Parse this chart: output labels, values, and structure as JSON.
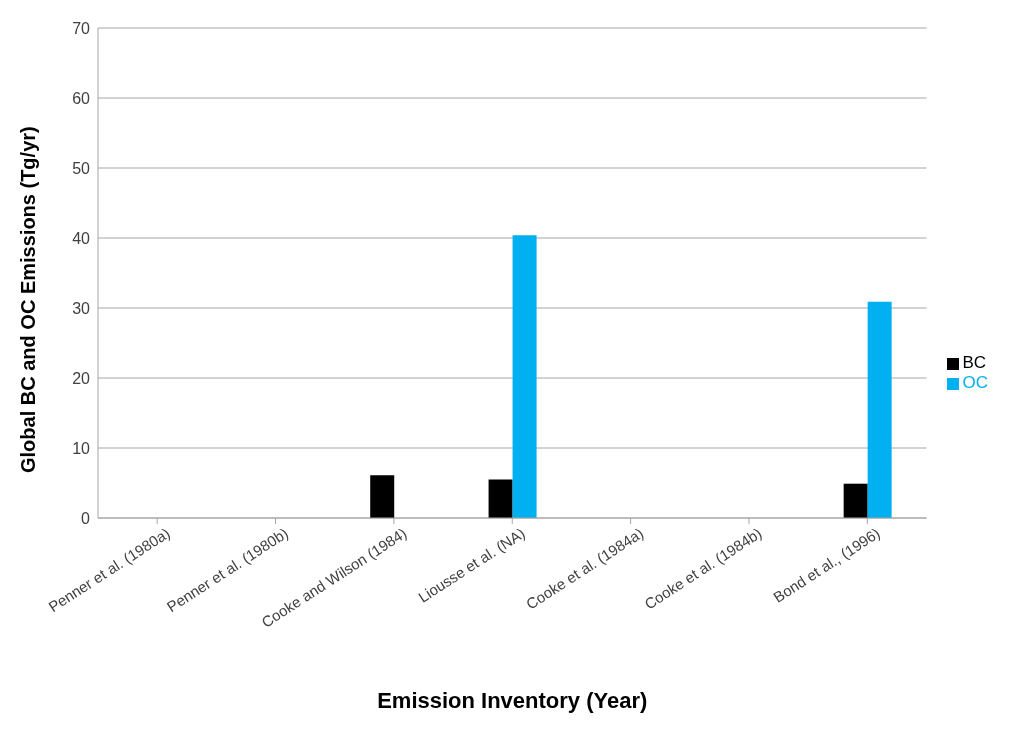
{
  "chart_data": {
    "type": "bar",
    "xlabel": "Emission Inventory (Year)",
    "ylabel": "Global BC and OC Emissions (Tg/yr)",
    "categories": [
      "Penner et al. (1980a)",
      "Penner et al. (1980b)",
      "Cooke and Wilson (1984)",
      "Liousse et al. (NA)",
      "Cooke et al. (1984a)",
      "Cooke et al. (1984b)",
      "Bond et al., (1996)"
    ],
    "series": [
      {
        "name": "BC",
        "color": "#000000",
        "values": [
          null,
          null,
          6.1,
          5.5,
          null,
          null,
          4.9
        ]
      },
      {
        "name": "OC",
        "color": "#00b0f0",
        "values": [
          null,
          null,
          null,
          40.4,
          null,
          null,
          30.9
        ]
      }
    ],
    "ylim": [
      0,
      70
    ],
    "yticks": [
      0,
      10,
      20,
      30,
      40,
      50,
      60,
      70
    ],
    "grid": "y",
    "legend": "right"
  }
}
